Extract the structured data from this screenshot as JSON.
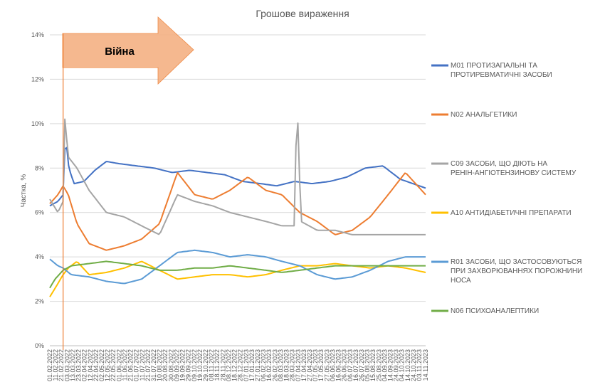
{
  "chart_data": {
    "type": "line",
    "title": "Грошове вираження",
    "ylabel": "Частка, %",
    "xlabel": "",
    "ylim": [
      0,
      14
    ],
    "y_ticks": [
      "0%",
      "2%",
      "4%",
      "6%",
      "8%",
      "10%",
      "12%",
      "14%"
    ],
    "grid": true,
    "legend_position": "right",
    "x_ticks": [
      "01.02.2022",
      "11.02.2022",
      "21.02.2022",
      "03.03.2022",
      "13.03.2022",
      "23.03.2022",
      "02.04.2022",
      "12.04.2022",
      "22.04.2022",
      "02.05.2022",
      "12.05.2022",
      "22.05.2022",
      "01.06.2022",
      "11.06.2022",
      "21.06.2022",
      "01.07.2022",
      "11.07.2022",
      "21.07.2022",
      "31.07.2022",
      "10.08.2022",
      "20.08.2022",
      "30.08.2022",
      "09.09.2022",
      "19.09.2022",
      "29.09.2022",
      "09.10.2022",
      "19.10.2022",
      "29.10.2022",
      "08.11.2022",
      "18.11.2022",
      "28.11.2022",
      "08.12.2022",
      "18.12.2022",
      "28.12.2022",
      "07.01.2023",
      "17.01.2023",
      "27.01.2023",
      "06.02.2023",
      "16.02.2023",
      "26.02.2023",
      "08.03.2023",
      "18.03.2023",
      "28.03.2023",
      "07.04.2023",
      "17.04.2023",
      "27.04.2023",
      "07.05.2023",
      "17.05.2023",
      "27.05.2023",
      "06.06.2023",
      "16.06.2023",
      "26.06.2023",
      "06.07.2023",
      "16.07.2023",
      "26.07.2023",
      "05.08.2023",
      "15.08.2023",
      "25.08.2023",
      "04.09.2023",
      "14.09.2023",
      "24.09.2023",
      "04.10.2023",
      "14.10.2023",
      "24.10.2023",
      "03.11.2023",
      "14.11.2023"
    ],
    "x_range": [
      "01.02.2022",
      "14.11.2023"
    ],
    "annotation": {
      "label": "Війна",
      "date": "24.02.2022"
    },
    "series": [
      {
        "name": "M01 ПРОТИЗАПАЛЬНІ ТА ПРОТИРЕВМАТИЧНІ ЗАСОБИ",
        "color": "#4472C4",
        "points": [
          [
            "01.02.2022",
            6.3
          ],
          [
            "15.02.2022",
            6.5
          ],
          [
            "24.02.2022",
            6.8
          ],
          [
            "28.02.2022",
            9.5
          ],
          [
            "06.03.2022",
            8.0
          ],
          [
            "15.03.2022",
            7.3
          ],
          [
            "01.04.2022",
            7.4
          ],
          [
            "20.04.2022",
            7.9
          ],
          [
            "10.05.2022",
            8.3
          ],
          [
            "01.06.2022",
            8.2
          ],
          [
            "01.07.2022",
            8.1
          ],
          [
            "01.08.2022",
            8.0
          ],
          [
            "01.09.2022",
            7.8
          ],
          [
            "01.10.2022",
            7.9
          ],
          [
            "01.11.2022",
            7.8
          ],
          [
            "01.12.2022",
            7.7
          ],
          [
            "01.01.2023",
            7.4
          ],
          [
            "01.02.2023",
            7.3
          ],
          [
            "01.03.2023",
            7.2
          ],
          [
            "01.04.2023",
            7.4
          ],
          [
            "01.05.2023",
            7.3
          ],
          [
            "01.06.2023",
            7.4
          ],
          [
            "01.07.2023",
            7.6
          ],
          [
            "01.08.2023",
            8.0
          ],
          [
            "01.09.2023",
            8.1
          ],
          [
            "01.10.2023",
            7.5
          ],
          [
            "14.11.2023",
            7.1
          ]
        ]
      },
      {
        "name": "N02 АНАЛЬГЕТИКИ",
        "color": "#ED7D31",
        "points": [
          [
            "01.02.2022",
            6.4
          ],
          [
            "15.02.2022",
            6.8
          ],
          [
            "24.02.2022",
            7.2
          ],
          [
            "05.03.2022",
            6.8
          ],
          [
            "20.03.2022",
            5.5
          ],
          [
            "10.04.2022",
            4.6
          ],
          [
            "10.05.2022",
            4.3
          ],
          [
            "10.06.2022",
            4.5
          ],
          [
            "10.07.2022",
            4.8
          ],
          [
            "10.08.2022",
            5.5
          ],
          [
            "10.09.2022",
            7.8
          ],
          [
            "10.10.2022",
            6.8
          ],
          [
            "10.11.2022",
            6.6
          ],
          [
            "10.12.2022",
            7.0
          ],
          [
            "10.01.2023",
            7.6
          ],
          [
            "10.02.2023",
            7.0
          ],
          [
            "10.03.2023",
            6.8
          ],
          [
            "10.04.2023",
            6.0
          ],
          [
            "10.05.2023",
            5.6
          ],
          [
            "10.06.2023",
            5.0
          ],
          [
            "10.07.2023",
            5.2
          ],
          [
            "10.08.2023",
            5.8
          ],
          [
            "10.09.2023",
            6.8
          ],
          [
            "10.10.2023",
            7.8
          ],
          [
            "14.11.2023",
            6.8
          ]
        ]
      },
      {
        "name": "C09 ЗАСОБИ, ЩО ДІЮТЬ НА РЕНІН-АНГІОТЕНЗИНОВУ СИСТЕМУ",
        "color": "#A5A5A5",
        "points": [
          [
            "01.02.2022",
            6.6
          ],
          [
            "15.02.2022",
            6.0
          ],
          [
            "24.02.2022",
            6.5
          ],
          [
            "26.02.2022",
            10.5
          ],
          [
            "05.03.2022",
            8.5
          ],
          [
            "20.03.2022",
            8.0
          ],
          [
            "10.04.2022",
            7.0
          ],
          [
            "10.05.2022",
            6.0
          ],
          [
            "10.06.2022",
            5.8
          ],
          [
            "10.07.2022",
            5.4
          ],
          [
            "10.08.2022",
            5.0
          ],
          [
            "10.09.2022",
            6.8
          ],
          [
            "10.10.2022",
            6.5
          ],
          [
            "10.11.2022",
            6.3
          ],
          [
            "10.12.2022",
            6.0
          ],
          [
            "10.01.2023",
            5.8
          ],
          [
            "10.02.2023",
            5.6
          ],
          [
            "10.03.2023",
            5.4
          ],
          [
            "01.04.2023",
            5.4
          ],
          [
            "05.04.2023",
            11.4
          ],
          [
            "12.04.2023",
            5.6
          ],
          [
            "10.05.2023",
            5.2
          ],
          [
            "10.06.2023",
            5.2
          ],
          [
            "10.07.2023",
            5.0
          ],
          [
            "10.08.2023",
            5.0
          ],
          [
            "10.09.2023",
            5.0
          ],
          [
            "10.10.2023",
            5.0
          ],
          [
            "14.11.2023",
            5.0
          ]
        ]
      },
      {
        "name": "A10 АНТИДІАБЕТИЧНІ ПРЕПАРАТИ",
        "color": "#FFC000",
        "points": [
          [
            "01.02.2022",
            2.2
          ],
          [
            "15.02.2022",
            2.8
          ],
          [
            "24.02.2022",
            3.2
          ],
          [
            "05.03.2022",
            3.5
          ],
          [
            "20.03.2022",
            3.8
          ],
          [
            "10.04.2022",
            3.2
          ],
          [
            "10.05.2022",
            3.3
          ],
          [
            "10.06.2022",
            3.5
          ],
          [
            "10.07.2022",
            3.8
          ],
          [
            "10.08.2022",
            3.4
          ],
          [
            "10.09.2022",
            3.0
          ],
          [
            "10.10.2022",
            3.1
          ],
          [
            "10.11.2022",
            3.2
          ],
          [
            "10.12.2022",
            3.2
          ],
          [
            "10.01.2023",
            3.1
          ],
          [
            "10.02.2023",
            3.2
          ],
          [
            "10.03.2023",
            3.4
          ],
          [
            "10.04.2023",
            3.6
          ],
          [
            "10.05.2023",
            3.6
          ],
          [
            "10.06.2023",
            3.7
          ],
          [
            "10.07.2023",
            3.6
          ],
          [
            "10.08.2023",
            3.5
          ],
          [
            "10.09.2023",
            3.6
          ],
          [
            "10.10.2023",
            3.5
          ],
          [
            "14.11.2023",
            3.3
          ]
        ]
      },
      {
        "name": "R01 ЗАСОБИ, ЩО ЗАСТОСОВУЮТЬСЯ ПРИ ЗАХВОРЮВАННЯХ ПОРОЖНИНИ НОСА",
        "color": "#5B9BD5",
        "points": [
          [
            "01.02.2022",
            3.9
          ],
          [
            "15.02.2022",
            3.6
          ],
          [
            "24.02.2022",
            3.5
          ],
          [
            "10.03.2022",
            3.2
          ],
          [
            "10.04.2022",
            3.1
          ],
          [
            "10.05.2022",
            2.9
          ],
          [
            "10.06.2022",
            2.8
          ],
          [
            "10.07.2022",
            3.0
          ],
          [
            "10.08.2022",
            3.6
          ],
          [
            "10.09.2022",
            4.2
          ],
          [
            "10.10.2022",
            4.3
          ],
          [
            "10.11.2022",
            4.2
          ],
          [
            "10.12.2022",
            4.0
          ],
          [
            "10.01.2023",
            4.1
          ],
          [
            "10.02.2023",
            4.0
          ],
          [
            "10.03.2023",
            3.8
          ],
          [
            "10.04.2023",
            3.6
          ],
          [
            "10.05.2023",
            3.2
          ],
          [
            "10.06.2023",
            3.0
          ],
          [
            "10.07.2023",
            3.1
          ],
          [
            "10.08.2023",
            3.4
          ],
          [
            "10.09.2023",
            3.8
          ],
          [
            "10.10.2023",
            4.0
          ],
          [
            "14.11.2023",
            4.0
          ]
        ]
      },
      {
        "name": "N06 ПСИХОАНАЛЕПТИКИ",
        "color": "#70AD47",
        "points": [
          [
            "01.02.2022",
            2.6
          ],
          [
            "10.02.2022",
            3.0
          ],
          [
            "24.02.2022",
            3.4
          ],
          [
            "10.03.2022",
            3.6
          ],
          [
            "10.04.2022",
            3.7
          ],
          [
            "10.05.2022",
            3.8
          ],
          [
            "10.06.2022",
            3.7
          ],
          [
            "10.07.2022",
            3.6
          ],
          [
            "10.08.2022",
            3.4
          ],
          [
            "10.09.2022",
            3.4
          ],
          [
            "10.10.2022",
            3.5
          ],
          [
            "10.11.2022",
            3.5
          ],
          [
            "10.12.2022",
            3.6
          ],
          [
            "10.01.2023",
            3.5
          ],
          [
            "10.02.2023",
            3.4
          ],
          [
            "10.03.2023",
            3.3
          ],
          [
            "10.04.2023",
            3.4
          ],
          [
            "10.05.2023",
            3.5
          ],
          [
            "10.06.2023",
            3.6
          ],
          [
            "10.07.2023",
            3.6
          ],
          [
            "10.08.2023",
            3.6
          ],
          [
            "10.09.2023",
            3.6
          ],
          [
            "10.10.2023",
            3.6
          ],
          [
            "14.11.2023",
            3.6
          ]
        ]
      }
    ]
  }
}
